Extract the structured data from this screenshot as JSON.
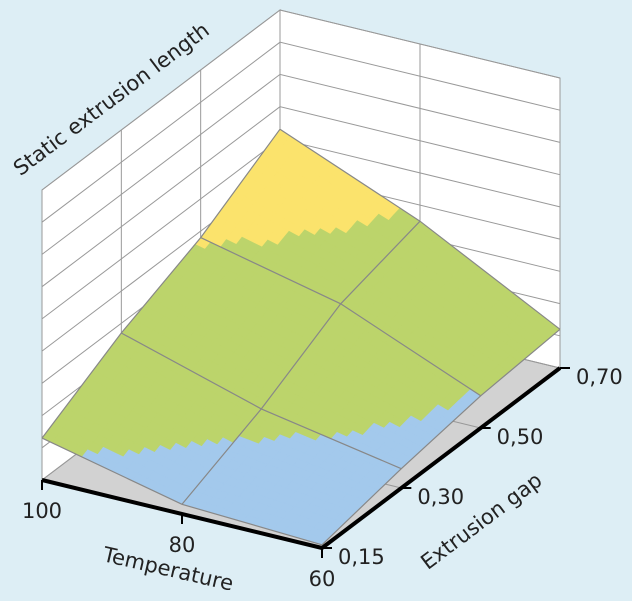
{
  "chart_data": {
    "type": "surface",
    "zlabel": "Static  extrusion length",
    "xlabel": "Temperature",
    "ylabel": "Extrusion gap",
    "x": [
      100,
      80,
      60
    ],
    "y": [
      {
        "value": 0.15,
        "label": "0,15"
      },
      {
        "value": 0.3,
        "label": "0,30"
      },
      {
        "value": 0.5,
        "label": "0,50"
      },
      {
        "value": 0.7,
        "label": "0,70"
      }
    ],
    "z": [
      [
        1.3,
        0.3,
        0.1
      ],
      [
        2.7,
        1.4,
        0.6
      ],
      [
        3.8,
        2.8,
        1.0
      ],
      [
        5.3,
        3.5,
        1.2
      ]
    ],
    "zlim": [
      0,
      9
    ],
    "zticks": [
      0,
      1,
      2,
      3,
      4,
      5,
      6,
      7,
      8,
      9
    ],
    "levels": [
      0,
      1.05,
      3.7
    ],
    "colors": [
      "#a3c9ec",
      "#bcd46b",
      "#fbe36c"
    ]
  }
}
